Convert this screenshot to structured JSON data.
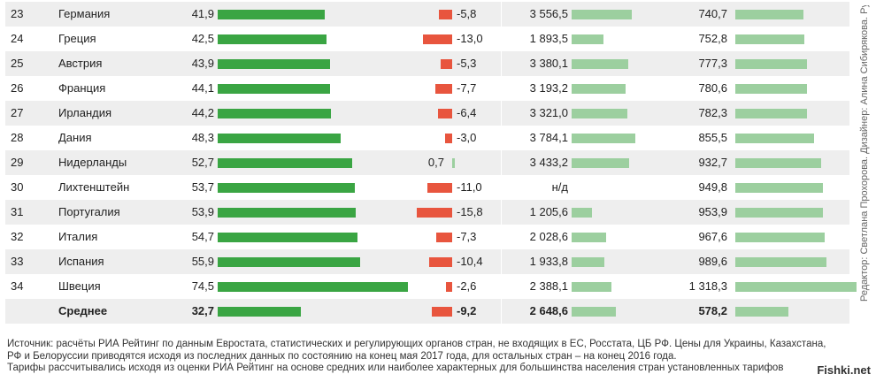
{
  "chart_data": {
    "type": "table",
    "rows": [
      {
        "rank": "23",
        "country": "Германия",
        "v1": 41.9,
        "v1_label": "41,9",
        "v2": -5.8,
        "v2_label": "-5,8",
        "v3": 3556.5,
        "v3_label": "3 556,5",
        "v4": 740.7,
        "v4_label": "740,7"
      },
      {
        "rank": "24",
        "country": "Греция",
        "v1": 42.5,
        "v1_label": "42,5",
        "v2": -13.0,
        "v2_label": "-13,0",
        "v3": 1893.5,
        "v3_label": "1 893,5",
        "v4": 752.8,
        "v4_label": "752,8"
      },
      {
        "rank": "25",
        "country": "Австрия",
        "v1": 43.9,
        "v1_label": "43,9",
        "v2": -5.3,
        "v2_label": "-5,3",
        "v3": 3380.1,
        "v3_label": "3 380,1",
        "v4": 777.3,
        "v4_label": "777,3"
      },
      {
        "rank": "26",
        "country": "Франция",
        "v1": 44.1,
        "v1_label": "44,1",
        "v2": -7.7,
        "v2_label": "-7,7",
        "v3": 3193.2,
        "v3_label": "3 193,2",
        "v4": 780.6,
        "v4_label": "780,6"
      },
      {
        "rank": "27",
        "country": "Ирландия",
        "v1": 44.2,
        "v1_label": "44,2",
        "v2": -6.4,
        "v2_label": "-6,4",
        "v3": 3321.0,
        "v3_label": "3 321,0",
        "v4": 782.3,
        "v4_label": "782,3"
      },
      {
        "rank": "28",
        "country": "Дания",
        "v1": 48.3,
        "v1_label": "48,3",
        "v2": -3.0,
        "v2_label": "-3,0",
        "v3": 3784.1,
        "v3_label": "3 784,1",
        "v4": 855.5,
        "v4_label": "855,5"
      },
      {
        "rank": "29",
        "country": "Нидерланды",
        "v1": 52.7,
        "v1_label": "52,7",
        "v2": 0.7,
        "v2_label": "0,7",
        "v3": 3433.2,
        "v3_label": "3 433,2",
        "v4": 932.7,
        "v4_label": "932,7"
      },
      {
        "rank": "30",
        "country": "Лихтенштейн",
        "v1": 53.7,
        "v1_label": "53,7",
        "v2": -11.0,
        "v2_label": "-11,0",
        "v3": null,
        "v3_label": "н/д",
        "v4": 949.8,
        "v4_label": "949,8"
      },
      {
        "rank": "31",
        "country": "Португалия",
        "v1": 53.9,
        "v1_label": "53,9",
        "v2": -15.8,
        "v2_label": "-15,8",
        "v3": 1205.6,
        "v3_label": "1 205,6",
        "v4": 953.9,
        "v4_label": "953,9"
      },
      {
        "rank": "32",
        "country": "Италия",
        "v1": 54.7,
        "v1_label": "54,7",
        "v2": -7.3,
        "v2_label": "-7,3",
        "v3": 2028.6,
        "v3_label": "2 028,6",
        "v4": 967.6,
        "v4_label": "967,6"
      },
      {
        "rank": "33",
        "country": "Испания",
        "v1": 55.9,
        "v1_label": "55,9",
        "v2": -10.4,
        "v2_label": "-10,4",
        "v3": 1933.8,
        "v3_label": "1 933,8",
        "v4": 989.6,
        "v4_label": "989,6"
      },
      {
        "rank": "34",
        "country": "Швеция",
        "v1": 74.5,
        "v1_label": "74,5",
        "v2": -2.6,
        "v2_label": "-2,6",
        "v3": 2388.1,
        "v3_label": "2 388,1",
        "v4": 1318.3,
        "v4_label": "1 318,3"
      }
    ],
    "average": {
      "rank": "",
      "country": "Среднее",
      "v1": 32.7,
      "v1_label": "32,7",
      "v2": -9.2,
      "v2_label": "-9,2",
      "v3": 2648.6,
      "v3_label": "2 648,6",
      "v4": 578.2,
      "v4_label": "578,2"
    },
    "colors": {
      "bar1": "#3aa543",
      "bar2": "#e8553e",
      "bar3": "#9ccf9f",
      "bar4": "#9ccf9f",
      "row_alt": "#eeeeee"
    }
  },
  "footnote": {
    "line1": "Источник: расчёты РИА Рейтинг по данным Евростата, статистических и регулирующих органов стран, не входящих в ЕС, Росстата, ЦБ РФ. Цены для Украины, Казахстана,",
    "line2": "РФ и Белоруссии приводятся исходя из последних данных по состоянию на конец мая 2017 года, для остальных стран – на конец 2016 года.",
    "line3": "Тарифы рассчитывались исходя из оценки РИА Рейтинг на основе средних или наиболее характерных для большинства населения стран установленных тарифов"
  },
  "credit": "Редактор: Светлана Прохорова. Дизайнер: Алина Сибирякова. Руково",
  "watermark": "Fishki.net"
}
